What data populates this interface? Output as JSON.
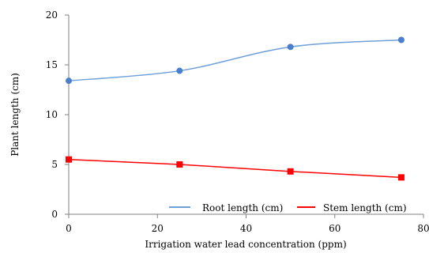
{
  "chart_data": {
    "type": "line",
    "title": "",
    "xlabel": "Irrigation water lead concentration (ppm)",
    "ylabel": "Plant length (cm)",
    "xlim": [
      0,
      80
    ],
    "ylim": [
      0,
      20
    ],
    "xticks": [
      "0",
      "20",
      "40",
      "60",
      "80"
    ],
    "yticks": [
      "0",
      "5",
      "10",
      "15",
      "20"
    ],
    "grid": false,
    "legend_position": "bottom-right",
    "x": [
      0,
      25,
      50,
      75
    ],
    "series": [
      {
        "name": "Root length (cm)",
        "values": [
          13.4,
          14.4,
          16.8,
          17.5
        ],
        "color": "#6f9fd8",
        "marker": "circle",
        "smooth": true
      },
      {
        "name": "Stem length (cm)",
        "values": [
          5.5,
          5.0,
          4.3,
          3.7
        ],
        "color": "#ff0000",
        "marker": "square",
        "smooth": false
      }
    ]
  }
}
